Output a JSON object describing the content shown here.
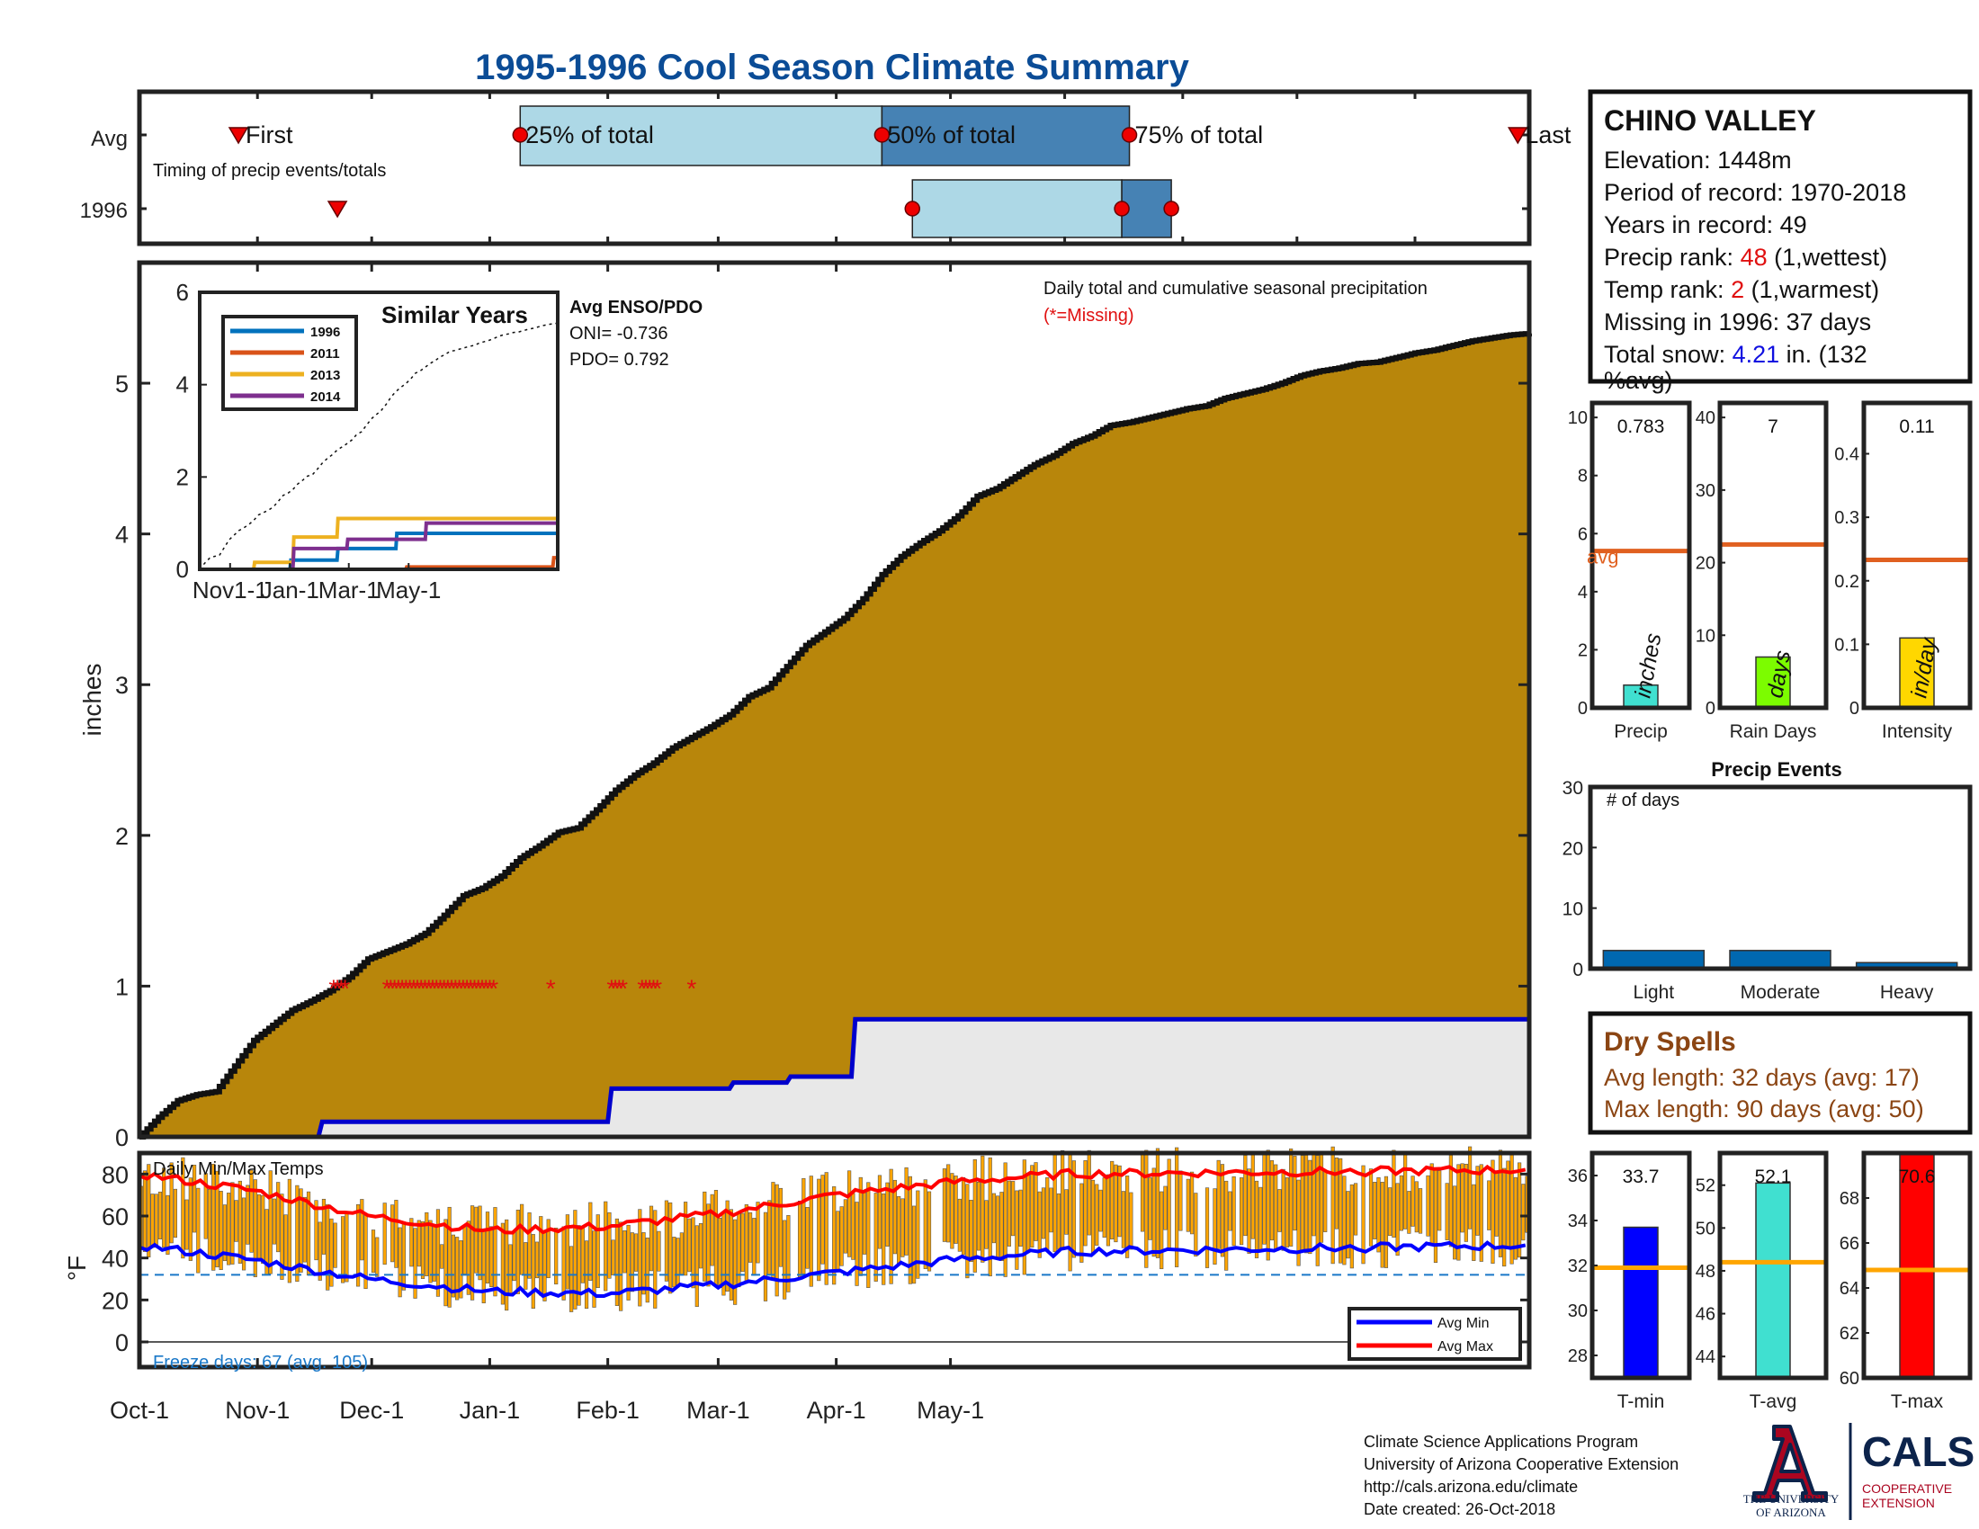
{
  "title": "1995-1996 Cool Season Climate Summary",
  "colors": {
    "title": "#0b4c96",
    "frame": "#333333",
    "fill": "#b8860b",
    "seasonal": "#0000cc",
    "light_blue": "#add8e6",
    "steel_blue": "#4682b4",
    "marker": "#ee0000",
    "tmin": "#0000ff",
    "tmax": "#ff0000",
    "bars": "#ffa500",
    "avg_line": "#e06020",
    "teal": "#40e0d0",
    "green": "#7cfc00",
    "gold": "#ffd700",
    "events": "#0068b0",
    "dry": "#8b4513"
  },
  "timing": {
    "rows": [
      "Avg",
      "1996"
    ],
    "caption": "Timing of precip events/totals",
    "labels": {
      "first": "First",
      "p25": "25% of total",
      "p50": "50% of total",
      "p75": "75% of total",
      "last": "Last"
    },
    "avg": {
      "first": 26,
      "p25": 100,
      "p50": 195,
      "p75": 260,
      "last": 365
    },
    "year": {
      "first": 52,
      "p25": 203,
      "p50": 258,
      "p75": 271,
      "last": null
    }
  },
  "station": {
    "name": "CHINO VALLEY",
    "elevation": "Elevation: 1448m",
    "period": "Period of record: 1970-2018",
    "years": "Years in record: 49",
    "precip_rank_label": "Precip rank: ",
    "precip_rank": "48",
    "precip_rank_note": " (1,wettest)",
    "temp_rank_label": "Temp rank: ",
    "temp_rank": "2",
    "temp_rank_note": " (1,warmest)",
    "missing": "Missing in 1996: 37 days",
    "snow_label": "Total snow: ",
    "snow_value": "4.21",
    "snow_note": " in. (132",
    "snow_note2": "%avg)"
  },
  "chart_data": [
    {
      "id": "cumulative_precip",
      "type": "area",
      "ylabel": "inches",
      "ylim": [
        0,
        5.8
      ],
      "yticks": [
        0,
        1,
        2,
        3,
        4,
        5
      ],
      "xlim": [
        0,
        365
      ],
      "xticks": [
        {
          "label": "Oct-1",
          "day": 0
        },
        {
          "label": "Nov-1",
          "day": 31
        },
        {
          "label": "Dec-1",
          "day": 61
        },
        {
          "label": "Jan-1",
          "day": 92
        },
        {
          "label": "Feb-1",
          "day": 123
        },
        {
          "label": "Mar-1",
          "day": 152
        },
        {
          "label": "Apr-1",
          "day": 183
        },
        {
          "label": "May-1",
          "day": 213
        }
      ],
      "annotation": "Daily total and cumulative seasonal precipitation",
      "missing_note": "(*=Missing)",
      "cumulative_avg": {
        "x": [
          0,
          5,
          10,
          15,
          20,
          25,
          30,
          35,
          40,
          45,
          50,
          55,
          60,
          65,
          70,
          75,
          80,
          85,
          90,
          95,
          100,
          105,
          110,
          115,
          120,
          125,
          130,
          135,
          140,
          145,
          150,
          155,
          160,
          165,
          170,
          175,
          180,
          185,
          190,
          195,
          200,
          205,
          210,
          215,
          220,
          225,
          230,
          235,
          240,
          245,
          250,
          255,
          260,
          265,
          270,
          275,
          280,
          285,
          290,
          295,
          300,
          305,
          310,
          315,
          320,
          325,
          330,
          335,
          340,
          345,
          350,
          355,
          360,
          365
        ],
        "y": [
          0.0,
          0.13,
          0.24,
          0.28,
          0.3,
          0.47,
          0.64,
          0.74,
          0.84,
          0.9,
          0.97,
          1.06,
          1.18,
          1.23,
          1.28,
          1.35,
          1.47,
          1.6,
          1.65,
          1.73,
          1.85,
          1.93,
          2.02,
          2.05,
          2.17,
          2.3,
          2.4,
          2.48,
          2.58,
          2.65,
          2.72,
          2.8,
          2.92,
          2.98,
          3.12,
          3.26,
          3.35,
          3.44,
          3.57,
          3.73,
          3.85,
          3.94,
          4.02,
          4.12,
          4.25,
          4.3,
          4.38,
          4.46,
          4.52,
          4.6,
          4.65,
          4.72,
          4.74,
          4.77,
          4.8,
          4.83,
          4.85,
          4.9,
          4.93,
          4.96,
          5.0,
          5.05,
          5.08,
          5.1,
          5.13,
          5.14,
          5.17,
          5.2,
          5.22,
          5.25,
          5.28,
          5.3,
          5.32,
          5.33
        ]
      },
      "cumulative_1996": {
        "x": [
          0,
          47,
          48,
          123,
          124,
          155,
          156,
          170,
          171,
          187,
          188,
          365
        ],
        "y": [
          0,
          0,
          0.1,
          0.1,
          0.32,
          0.32,
          0.36,
          0.36,
          0.4,
          0.4,
          0.78,
          0.78
        ]
      },
      "missing_days": [
        51,
        52,
        53,
        54,
        65,
        66,
        67,
        68,
        69,
        70,
        71,
        72,
        73,
        74,
        75,
        76,
        77,
        78,
        79,
        80,
        81,
        82,
        83,
        84,
        85,
        86,
        87,
        88,
        89,
        90,
        91,
        92,
        93,
        108,
        124,
        125,
        126,
        127,
        132,
        133,
        134,
        135,
        136,
        145
      ]
    },
    {
      "id": "similar_years",
      "type": "line",
      "title": "Similar Years",
      "ylim": [
        0,
        6
      ],
      "yticks": [
        0,
        2,
        4,
        6
      ],
      "xticks": [
        {
          "label": "Nov1-1",
          "day": 31
        },
        {
          "label": "Jan-1",
          "day": 92
        },
        {
          "label": "Mar-1",
          "day": 152
        },
        {
          "label": "May-1",
          "day": 213
        }
      ],
      "series": [
        {
          "name": "1996",
          "color": "#0072bd",
          "x": [
            0,
            92,
            93,
            140,
            141,
            200,
            201,
            365
          ],
          "y": [
            0,
            0,
            0.2,
            0.2,
            0.45,
            0.45,
            0.78,
            0.78
          ]
        },
        {
          "name": "2011",
          "color": "#d95319",
          "x": [
            0,
            210,
            211,
            360,
            361,
            365
          ],
          "y": [
            0,
            0,
            0.05,
            0.05,
            0.25,
            0.25
          ]
        },
        {
          "name": "2013",
          "color": "#edb120",
          "x": [
            0,
            55,
            56,
            95,
            96,
            140,
            141,
            365
          ],
          "y": [
            0,
            0,
            0.15,
            0.15,
            0.7,
            0.7,
            1.1,
            1.1
          ]
        },
        {
          "name": "2014",
          "color": "#7e2f8e",
          "x": [
            0,
            95,
            96,
            150,
            151,
            230,
            231,
            365
          ],
          "y": [
            0,
            0,
            0.45,
            0.45,
            0.65,
            0.65,
            1.0,
            1.0
          ]
        }
      ],
      "enso": {
        "title": "Avg ENSO/PDO",
        "oni": "ONI= -0.736",
        "pdo": "PDO= 0.792"
      }
    },
    {
      "id": "temps",
      "type": "bar",
      "title": "Daily Min/Max Temps",
      "ylabel": "°F",
      "ylim": [
        -12,
        90
      ],
      "yticks": [
        0,
        20,
        40,
        60,
        80
      ],
      "freeze_label": "Freeze days: 67 (avg. 105)",
      "freeze_line": 32,
      "legend": [
        "Avg Min",
        "Avg Max"
      ],
      "avg_min": {
        "x": [
          0,
          30,
          60,
          92,
          123,
          152,
          183,
          213,
          243,
          365
        ],
        "y": [
          46,
          39,
          30,
          24,
          23,
          27,
          33,
          39,
          43,
          46
        ]
      },
      "avg_max": {
        "x": [
          0,
          30,
          60,
          92,
          123,
          152,
          183,
          213,
          243,
          365
        ],
        "y": [
          80,
          72,
          60,
          53,
          55,
          61,
          70,
          76,
          80,
          82
        ]
      },
      "daily_seed": 1996
    },
    {
      "id": "precip_stats",
      "type": "bar",
      "categories": [
        "Precip",
        "Rain Days",
        "Intensity"
      ],
      "values": [
        0.783,
        7,
        0.11
      ],
      "value_labels": [
        "0.783",
        "7",
        "0.11"
      ],
      "units": [
        "inches",
        "days",
        "in/day"
      ],
      "averages": [
        5.4,
        22.5,
        0.233
      ],
      "ylims": [
        [
          0,
          10.5
        ],
        [
          0,
          42
        ],
        [
          0,
          0.48
        ]
      ],
      "yticks": [
        [
          0,
          2,
          4,
          6,
          8,
          10
        ],
        [
          0,
          10,
          20,
          30,
          40
        ],
        [
          0,
          0.1,
          0.2,
          0.3,
          0.4
        ]
      ],
      "avg_label": "avg"
    },
    {
      "id": "precip_events",
      "type": "bar",
      "title": "Precip Events",
      "ylabel_inside": "# of days",
      "categories": [
        "Light",
        "Moderate",
        "Heavy"
      ],
      "values": [
        3,
        3,
        1
      ],
      "ylim": [
        0,
        30
      ],
      "yticks": [
        0,
        10,
        20,
        30
      ]
    },
    {
      "id": "temp_stats",
      "type": "bar",
      "categories": [
        "T-min",
        "T-avg",
        "T-max"
      ],
      "values": [
        33.7,
        52.1,
        70.6
      ],
      "value_labels": [
        "33.7",
        "52.1",
        "70.6"
      ],
      "averages": [
        31.9,
        48.4,
        64.8
      ],
      "ylims": [
        [
          27,
          37
        ],
        [
          43,
          53.5
        ],
        [
          60,
          70
        ]
      ],
      "yticks": [
        [
          28,
          30,
          32,
          34,
          36
        ],
        [
          44,
          46,
          48,
          50,
          52
        ],
        [
          60,
          62,
          64,
          66,
          68
        ]
      ]
    }
  ],
  "dry_spells": {
    "title": "Dry Spells",
    "avg": "Avg length: 32 days (avg: 17)",
    "max": "Max length: 90 days (avg: 50)"
  },
  "footer": {
    "line1": "Climate Science Applications Program",
    "line2": "University of Arizona Cooperative Extension",
    "line3": "http://cals.arizona.edu/climate",
    "line4": " Date created: 26-Oct-2018"
  },
  "logos": {
    "ua_1": "THE UNIVERSITY",
    "ua_2": "OF ARIZONA",
    "cals": "CALS",
    "cals_1": "COOPERATIVE",
    "cals_2": "EXTENSION"
  }
}
